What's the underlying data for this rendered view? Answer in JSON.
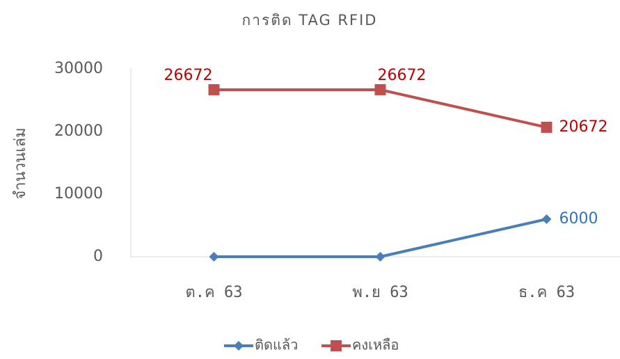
{
  "chart_data": {
    "type": "line",
    "title": "การติด TAG  RFID",
    "y_label": "จำนวนเล่ม",
    "categories": [
      "ต.ค 63",
      "พ.ย 63",
      "ธ.ค 63"
    ],
    "series": [
      {
        "name": "ติดแล้ว",
        "color": "#4a7ebb",
        "marker": "diamond",
        "label_color": "#2e75b6",
        "values": [
          0,
          0,
          6000
        ],
        "value_labels": [
          null,
          null,
          "6000"
        ]
      },
      {
        "name": "คงเหลือ",
        "color": "#c0504d",
        "marker": "square",
        "label_color": "#c00000",
        "values": [
          26672,
          26672,
          20672
        ],
        "value_labels": [
          "26672",
          "26672",
          "20672"
        ]
      }
    ],
    "ylim": [
      0,
      30000
    ],
    "yticks": [
      0,
      10000,
      20000,
      30000
    ],
    "grid": false,
    "legend": "bottom"
  }
}
